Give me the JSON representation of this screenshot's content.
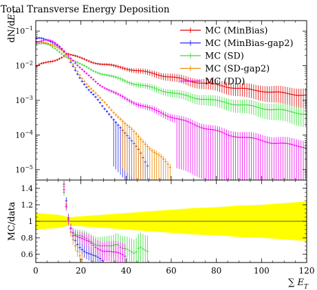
{
  "chart_data": {
    "type": "line",
    "title": "Total Transverse Energy Deposition",
    "xlabel": "∑ E_T",
    "ylabel_top": "dN/dE_T",
    "ylabel_bottom": "MC/data",
    "xlim": [
      0,
      120
    ],
    "ylim_top": [
      5e-06,
      0.2
    ],
    "yscale_top": "log",
    "ylim_bottom": [
      0.5,
      1.5
    ],
    "x_ticks": [
      "0",
      "20",
      "40",
      "60",
      "80",
      "100",
      "120"
    ],
    "y_ticks_top": [
      {
        "value": 0.1,
        "mantissa": "10",
        "exp": "−1"
      },
      {
        "value": 0.01,
        "mantissa": "10",
        "exp": "−2"
      },
      {
        "value": 0.001,
        "mantissa": "10",
        "exp": "−3"
      },
      {
        "value": 0.0001,
        "mantissa": "10",
        "exp": "−4"
      },
      {
        "value": 1e-05,
        "mantissa": "10",
        "exp": "−5"
      }
    ],
    "y_ticks_bottom": [
      "0.6",
      "0.8",
      "1",
      "1.2",
      "1.4"
    ],
    "legend_position": "top-right",
    "series": [
      {
        "name": "MC (MinBias)",
        "color": "#dd0000",
        "x": [
          0,
          2,
          4,
          6,
          8,
          10,
          12,
          14,
          16,
          18,
          20,
          25,
          30,
          35,
          40,
          45,
          50,
          55,
          60,
          65,
          70,
          75,
          80,
          85,
          90,
          95,
          100,
          105,
          110,
          115,
          120
        ],
        "y": [
          0.0095,
          0.011,
          0.0115,
          0.0125,
          0.0135,
          0.016,
          0.019,
          0.023,
          0.02,
          0.018,
          0.016,
          0.013,
          0.011,
          0.0095,
          0.0085,
          0.0072,
          0.0062,
          0.0055,
          0.0047,
          0.004,
          0.0035,
          0.0031,
          0.0028,
          0.0025,
          0.0022,
          0.002,
          0.0019,
          0.0017,
          0.0016,
          0.0015,
          0.0014
        ]
      },
      {
        "name": "MC (MinBias-gap2)",
        "color": "#2222ee",
        "x": [
          0,
          2,
          4,
          6,
          8,
          10,
          12,
          14,
          16,
          18,
          20,
          22,
          24,
          26,
          28,
          30,
          32,
          34,
          36,
          38,
          40,
          42,
          44,
          46,
          48,
          50
        ],
        "y": [
          0.06,
          0.065,
          0.062,
          0.055,
          0.045,
          0.035,
          0.026,
          0.018,
          0.011,
          0.0068,
          0.0042,
          0.0027,
          0.0018,
          0.0013,
          0.0009,
          0.0006,
          0.00045,
          0.00032,
          0.00022,
          0.00015,
          0.0001,
          7e-05,
          5e-05,
          3.5e-05,
          2e-05,
          1.2e-05
        ]
      },
      {
        "name": "MC (SD)",
        "color": "#33dd33",
        "x": [
          0,
          2,
          4,
          6,
          8,
          10,
          12,
          14,
          16,
          18,
          20,
          25,
          30,
          35,
          40,
          45,
          50,
          55,
          60,
          65,
          70,
          75,
          80,
          85,
          90,
          95,
          100,
          105,
          110,
          115,
          120
        ],
        "y": [
          0.045,
          0.044,
          0.042,
          0.038,
          0.032,
          0.027,
          0.022,
          0.018,
          0.015,
          0.0125,
          0.0105,
          0.0075,
          0.0058,
          0.0045,
          0.0036,
          0.0029,
          0.0024,
          0.002,
          0.0017,
          0.0014,
          0.0012,
          0.0011,
          0.00095,
          0.00085,
          0.00075,
          0.00068,
          0.0006,
          0.00055,
          0.0005,
          0.00045,
          0.0004
        ]
      },
      {
        "name": "MC (SD-gap2)",
        "color": "#ee8800",
        "x": [
          0,
          2,
          4,
          6,
          8,
          10,
          12,
          14,
          16,
          18,
          20,
          22,
          24,
          26,
          28,
          30,
          32,
          34,
          36,
          38,
          40,
          42,
          44,
          46,
          48,
          50,
          52,
          55,
          58,
          60
        ],
        "y": [
          0.045,
          0.048,
          0.048,
          0.045,
          0.04,
          0.033,
          0.025,
          0.018,
          0.012,
          0.0078,
          0.005,
          0.0034,
          0.0024,
          0.0017,
          0.0012,
          0.0009,
          0.00068,
          0.0005,
          0.00038,
          0.00028,
          0.0002,
          0.00015,
          0.00011,
          8e-05,
          6e-05,
          4.5e-05,
          3.5e-05,
          2.5e-05,
          1.5e-05,
          1e-05
        ]
      },
      {
        "name": "MC (DD)",
        "color": "#ee00ee",
        "x": [
          0,
          2,
          4,
          6,
          8,
          10,
          12,
          14,
          16,
          18,
          20,
          22,
          25,
          28,
          30,
          35,
          40,
          45,
          50,
          55,
          60,
          65,
          70,
          75,
          80,
          85,
          90,
          95,
          100,
          105,
          110,
          115,
          120
        ],
        "y": [
          0.05,
          0.052,
          0.055,
          0.052,
          0.046,
          0.038,
          0.03,
          0.022,
          0.016,
          0.011,
          0.008,
          0.006,
          0.0042,
          0.003,
          0.0025,
          0.0016,
          0.0011,
          0.0008,
          0.0006,
          0.00045,
          0.00034,
          0.00026,
          0.0002,
          0.00016,
          0.00013,
          0.0001,
          9e-05,
          8e-05,
          7e-05,
          6e-05,
          5.5e-05,
          5e-05,
          4.5e-05
        ]
      }
    ],
    "ratio_band": {
      "color": "#ffff00",
      "x": [
        0,
        10,
        15,
        20,
        30,
        40,
        50,
        60,
        70,
        80,
        90,
        100,
        110,
        120
      ],
      "half_width": [
        0.1,
        0.08,
        0.05,
        0.06,
        0.08,
        0.1,
        0.12,
        0.14,
        0.16,
        0.17,
        0.19,
        0.2,
        0.22,
        0.24
      ]
    },
    "ratio_series": [
      {
        "name": "MC (MinBias-gap2)",
        "color": "#2222ee",
        "x": [
          12,
          13,
          14,
          15,
          16,
          17,
          18,
          19,
          20,
          21,
          22,
          23,
          24,
          25,
          26,
          27,
          28,
          29,
          30
        ],
        "y": [
          1.5,
          1.35,
          1.1,
          0.95,
          0.86,
          0.8,
          0.76,
          0.72,
          0.69,
          0.67,
          0.64,
          0.62,
          0.6,
          0.58,
          0.56,
          0.55,
          0.53,
          0.52,
          0.5
        ]
      },
      {
        "name": "MC (SD)",
        "color": "#33dd33",
        "x": [
          12,
          13,
          14,
          15,
          16,
          18,
          20,
          22,
          24,
          26,
          28,
          30,
          32,
          34,
          36,
          38,
          40,
          42,
          44,
          46,
          48,
          50
        ],
        "y": [
          1.45,
          1.3,
          1.1,
          0.98,
          0.88,
          0.82,
          0.8,
          0.78,
          0.76,
          0.74,
          0.73,
          0.72,
          0.7,
          0.68,
          0.7,
          0.66,
          0.68,
          0.66,
          0.63,
          0.7,
          0.64,
          0.6
        ]
      },
      {
        "name": "MC (SD-gap2)",
        "color": "#ee8800",
        "x": [
          12,
          13,
          14,
          15,
          16,
          17,
          18,
          19,
          20,
          21,
          22
        ],
        "y": [
          1.5,
          1.3,
          1.05,
          0.9,
          0.8,
          0.73,
          0.67,
          0.62,
          0.58,
          0.54,
          0.5
        ]
      },
      {
        "name": "MC (DD)",
        "color": "#ee00ee",
        "x": [
          12,
          13,
          14,
          15,
          16,
          17,
          18,
          20,
          22,
          24,
          26,
          28,
          30,
          32,
          34,
          36,
          38,
          40
        ],
        "y": [
          1.5,
          1.3,
          1.1,
          0.98,
          0.9,
          0.85,
          0.82,
          0.78,
          0.75,
          0.73,
          0.7,
          0.68,
          0.66,
          0.65,
          0.62,
          0.6,
          0.58,
          0.56
        ]
      }
    ]
  }
}
